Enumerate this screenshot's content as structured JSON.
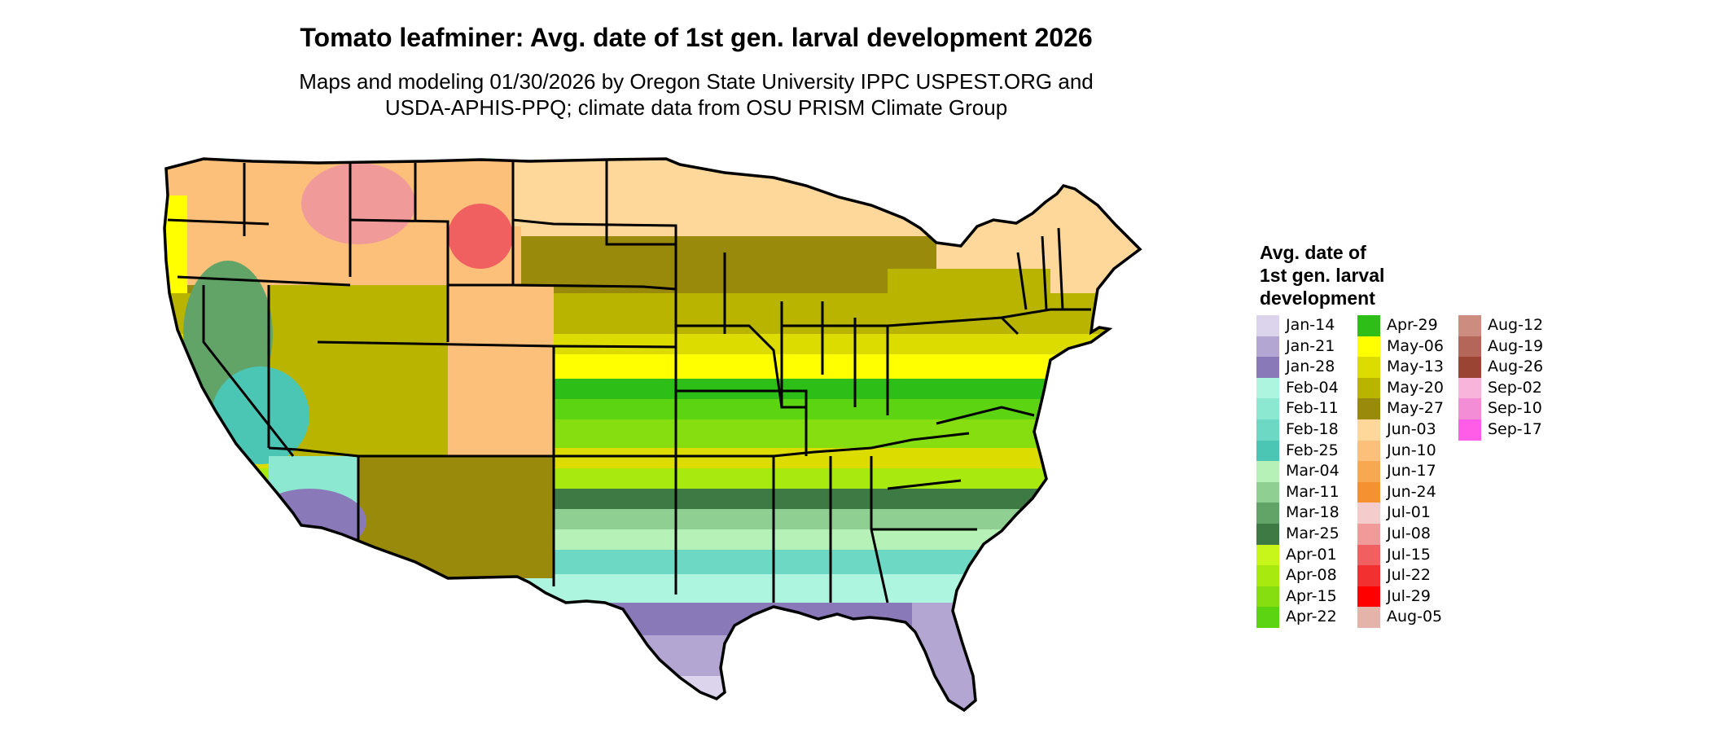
{
  "title": "Tomato leafminer: Avg. date of 1st gen. larval development 2026",
  "subtitle_lines": [
    "Maps and modeling 01/30/2026 by Oregon State University IPPC USPEST.ORG and",
    "USDA-APHIS-PPQ; climate data from OSU PRISM Climate Group"
  ],
  "legend": {
    "title_lines": [
      "Avg. date of",
      "1st gen. larval",
      "development"
    ],
    "columns": [
      [
        {
          "label": "Jan-14",
          "color": "#dcd4ec"
        },
        {
          "label": "Jan-21",
          "color": "#b3a6d2"
        },
        {
          "label": "Jan-28",
          "color": "#8a79b8"
        },
        {
          "label": "Feb-04",
          "color": "#aef5e0"
        },
        {
          "label": "Feb-11",
          "color": "#8de8d2"
        },
        {
          "label": "Feb-18",
          "color": "#6dd8c4"
        },
        {
          "label": "Feb-25",
          "color": "#4cc6b4"
        },
        {
          "label": "Mar-04",
          "color": "#b6f2b8"
        },
        {
          "label": "Mar-11",
          "color": "#8fcf92"
        },
        {
          "label": "Mar-18",
          "color": "#62a468"
        },
        {
          "label": "Mar-25",
          "color": "#3e7a44"
        },
        {
          "label": "Apr-01",
          "color": "#c8f51a"
        },
        {
          "label": "Apr-08",
          "color": "#a8ea10"
        },
        {
          "label": "Apr-15",
          "color": "#86de10"
        },
        {
          "label": "Apr-22",
          "color": "#5cd412"
        }
      ],
      [
        {
          "label": "Apr-29",
          "color": "#2ebe18"
        },
        {
          "label": "May-06",
          "color": "#ffff00"
        },
        {
          "label": "May-13",
          "color": "#dcdc00"
        },
        {
          "label": "May-20",
          "color": "#b9b400"
        },
        {
          "label": "May-27",
          "color": "#9a8a0c"
        },
        {
          "label": "Jun-03",
          "color": "#fdd89a"
        },
        {
          "label": "Jun-10",
          "color": "#fcc07a"
        },
        {
          "label": "Jun-17",
          "color": "#f8a850"
        },
        {
          "label": "Jun-24",
          "color": "#f59130"
        },
        {
          "label": "Jul-01",
          "color": "#f4cccc"
        },
        {
          "label": "Jul-08",
          "color": "#f09a9a"
        },
        {
          "label": "Jul-15",
          "color": "#f06060"
        },
        {
          "label": "Jul-22",
          "color": "#f23030"
        },
        {
          "label": "Jul-29",
          "color": "#ff0000"
        },
        {
          "label": "Aug-05",
          "color": "#e4b4aa"
        }
      ],
      [
        {
          "label": "Aug-12",
          "color": "#cc8c80"
        },
        {
          "label": "Aug-19",
          "color": "#b46658"
        },
        {
          "label": "Aug-26",
          "color": "#9a4434"
        },
        {
          "label": "Sep-02",
          "color": "#f9b4dc"
        },
        {
          "label": "Sep-10",
          "color": "#f38ed6"
        },
        {
          "label": "Sep-17",
          "color": "#ff5ce8"
        }
      ]
    ]
  }
}
